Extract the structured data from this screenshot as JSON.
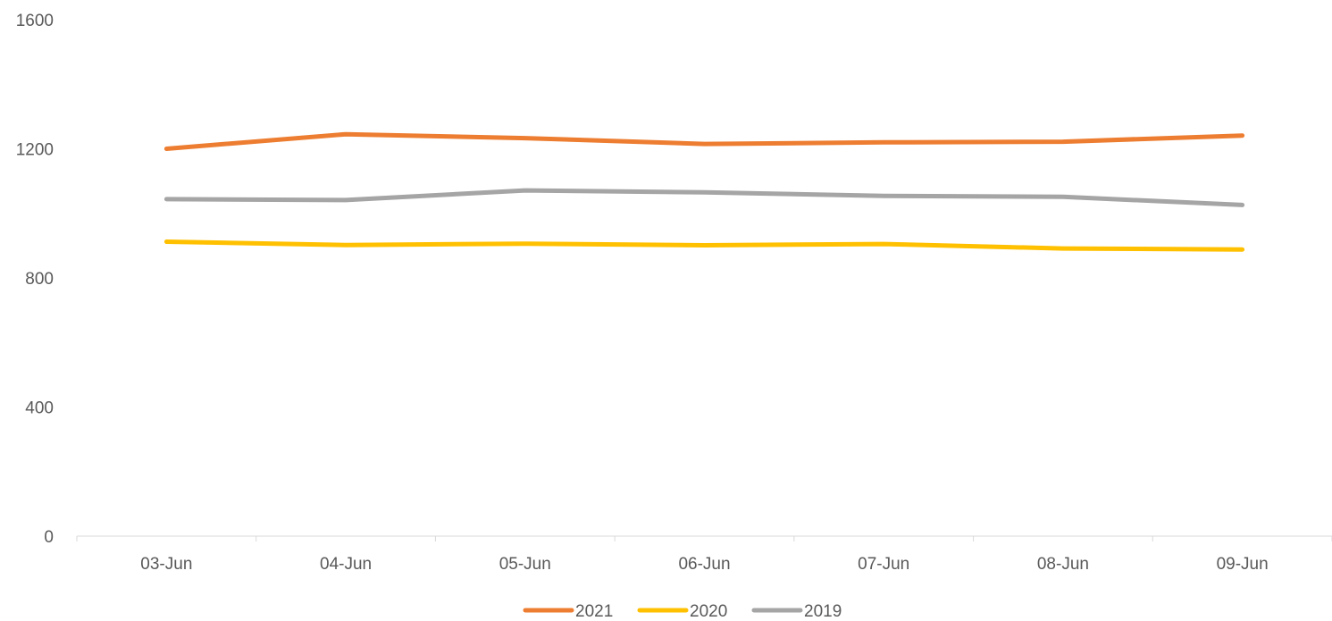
{
  "chart_data": {
    "type": "line",
    "title": "",
    "xlabel": "",
    "ylabel": "",
    "categories": [
      "03-Jun",
      "04-Jun",
      "05-Jun",
      "06-Jun",
      "07-Jun",
      "08-Jun",
      "09-Jun"
    ],
    "yticks": [
      "0",
      "400",
      "800",
      "1200",
      "1600"
    ],
    "ylim": [
      0,
      1600
    ],
    "grid": false,
    "legend": "bottom",
    "series": [
      {
        "name": "2021",
        "color": "#ED7D31",
        "values": [
          1200,
          1245,
          1233,
          1215,
          1220,
          1222,
          1241
        ]
      },
      {
        "name": "2020",
        "color": "#FFC000",
        "values": [
          912,
          902,
          906,
          901,
          905,
          891,
          888
        ]
      },
      {
        "name": "2019",
        "color": "#A5A5A5",
        "values": [
          1044,
          1041,
          1071,
          1065,
          1054,
          1051,
          1026
        ]
      }
    ]
  }
}
